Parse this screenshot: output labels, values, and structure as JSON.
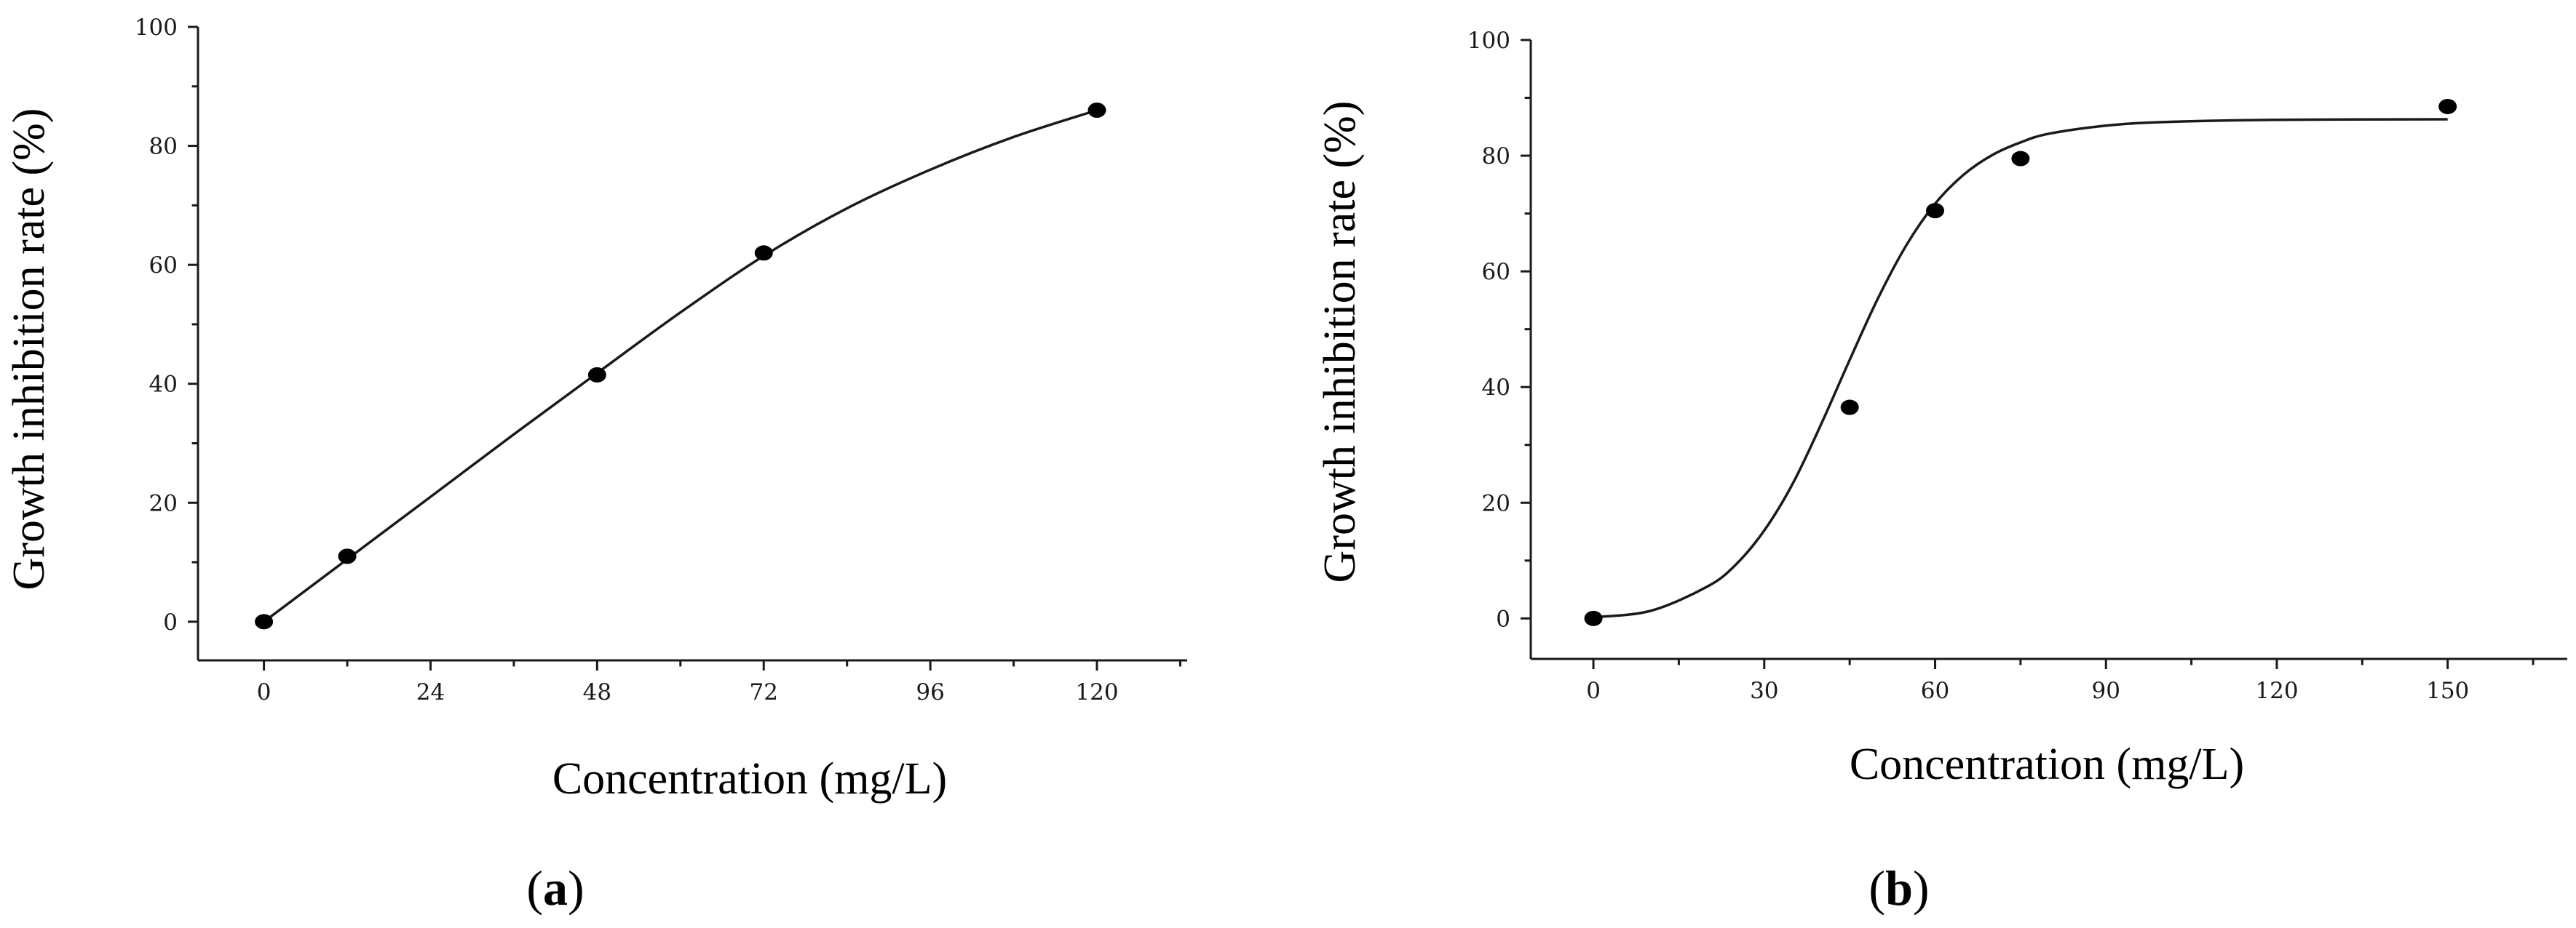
{
  "chart_data": [
    {
      "type": "scatter",
      "panel_label": "a",
      "xlabel": "Concentration (mg/L)",
      "ylabel": "Growth inhibition rate (%)",
      "xlim": [
        -9.5,
        133
      ],
      "ylim": [
        -6.5,
        100
      ],
      "xticks": [
        0,
        24,
        48,
        72,
        96,
        120
      ],
      "xtick_labels": [
        "0",
        "24",
        "48",
        "72",
        "96",
        "120"
      ],
      "yticks": [
        0,
        20,
        40,
        60,
        80,
        100
      ],
      "ytick_labels": [
        "0",
        "20",
        "40",
        "60",
        "80",
        "100"
      ],
      "grid": false,
      "series": [
        {
          "x": [
            0,
            12,
            48,
            72,
            120
          ],
          "y": [
            0,
            11,
            41.5,
            62,
            86
          ]
        }
      ],
      "fit_curve": {
        "x": [
          0,
          12,
          24,
          36,
          48,
          60,
          72,
          84,
          96,
          108,
          120
        ],
        "y": [
          0,
          10.5,
          21,
          31.5,
          41.8,
          52,
          61.5,
          69.5,
          76,
          81.5,
          86
        ]
      }
    },
    {
      "type": "scatter",
      "panel_label": "b",
      "xlabel": "Concentration (mg/L)",
      "ylabel": "Growth inhibition rate (%)",
      "xlim": [
        -11,
        171
      ],
      "ylim": [
        -7,
        100
      ],
      "xticks": [
        0,
        30,
        60,
        90,
        120,
        150
      ],
      "xtick_labels": [
        "0",
        "30",
        "60",
        "90",
        "120",
        "150"
      ],
      "yticks": [
        0,
        20,
        40,
        60,
        80,
        100
      ],
      "ytick_labels": [
        "0",
        "20",
        "40",
        "60",
        "80",
        "100"
      ],
      "grid": false,
      "series": [
        {
          "x": [
            0,
            45,
            60,
            75,
            150
          ],
          "y": [
            0,
            36.5,
            70.5,
            79.5,
            88.5
          ]
        }
      ],
      "fit_curve": {
        "x": [
          0,
          10,
          20,
          25,
          30,
          35,
          40,
          45,
          50,
          55,
          60,
          65,
          70,
          75,
          80,
          90,
          100,
          120,
          150
        ],
        "y": [
          0.2,
          1.3,
          5.5,
          9.3,
          15.2,
          23.3,
          33.6,
          44.7,
          55.4,
          64.6,
          71.7,
          76.7,
          80.1,
          82.3,
          83.8,
          85.2,
          85.8,
          86.2,
          86.3
        ]
      }
    }
  ]
}
